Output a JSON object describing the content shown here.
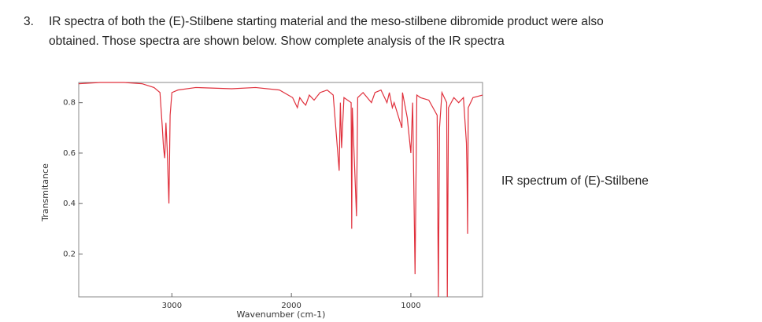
{
  "question": {
    "number": "3.",
    "lines": [
      "IR spectra of both the (E)-Stilbene starting material and the meso-stilbene dibromide product were also",
      "obtained. Those spectra are shown below.  Show complete analysis of the IR spectra"
    ]
  },
  "caption": "IR spectrum of (E)-Stilbene",
  "chart_data": {
    "type": "line",
    "xlabel": "Wavenumber (cm-1)",
    "ylabel": "Transmitance",
    "x": [
      3780,
      3600,
      3400,
      3250,
      3150,
      3100,
      3080,
      3070,
      3060,
      3050,
      3040,
      3025,
      3015,
      3000,
      2950,
      2800,
      2500,
      2300,
      2100,
      1990,
      1950,
      1930,
      1900,
      1880,
      1850,
      1810,
      1760,
      1700,
      1650,
      1600,
      1590,
      1580,
      1560,
      1500,
      1495,
      1490,
      1455,
      1445,
      1400,
      1330,
      1300,
      1250,
      1200,
      1180,
      1155,
      1140,
      1075,
      1070,
      1030,
      1000,
      985,
      965,
      950,
      920,
      850,
      780,
      770,
      760,
      740,
      700,
      695,
      685,
      640,
      600,
      560,
      535,
      530,
      525,
      520,
      480,
      400
    ],
    "series": [
      {
        "color": "#e0303c",
        "values": [
          0.875,
          0.88,
          0.88,
          0.875,
          0.86,
          0.84,
          0.7,
          0.62,
          0.58,
          0.72,
          0.62,
          0.4,
          0.75,
          0.84,
          0.85,
          0.86,
          0.855,
          0.86,
          0.85,
          0.82,
          0.78,
          0.82,
          0.8,
          0.79,
          0.83,
          0.81,
          0.84,
          0.85,
          0.83,
          0.53,
          0.8,
          0.62,
          0.82,
          0.8,
          0.3,
          0.78,
          0.35,
          0.82,
          0.84,
          0.8,
          0.84,
          0.85,
          0.8,
          0.84,
          0.78,
          0.8,
          0.7,
          0.84,
          0.74,
          0.6,
          0.8,
          0.12,
          0.83,
          0.82,
          0.81,
          0.75,
          0.03,
          0.7,
          0.84,
          0.8,
          0.03,
          0.78,
          0.82,
          0.8,
          0.82,
          0.64,
          0.52,
          0.28,
          0.78,
          0.82,
          0.83
        ]
      }
    ],
    "xlim": [
      3780,
      400
    ],
    "ylim": [
      0.03,
      0.88
    ],
    "xticks": [
      3000,
      2000,
      1000
    ],
    "yticks": [
      0.2,
      0.4,
      0.6,
      0.8
    ]
  }
}
